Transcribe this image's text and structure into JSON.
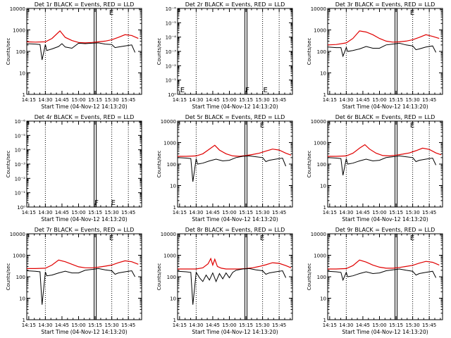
{
  "window": {
    "common_xlabel": "Start Time (04-Nov-12 14:13:20)",
    "common_ylabel": "Counts/sec"
  },
  "colors": {
    "events": "#000000",
    "lld": "#e00000",
    "background": "#ffffff"
  },
  "chart_data": [
    {
      "type": "line",
      "title": "Det 1r BLACK = Events, RED = LLD",
      "xlabel": "Start Time (04-Nov-12 14:13:20)",
      "ylabel": "Counts/sec",
      "yscale": "log",
      "ylim": [
        1,
        10000
      ],
      "yticks": [
        "1",
        "10",
        "100",
        "1000",
        "10000"
      ],
      "xticks": [
        "14:15",
        "14:30",
        "14:45",
        "15:00",
        "15:15",
        "15:30",
        "15:45"
      ],
      "xlim": [
        14.22,
        15.95
      ],
      "dotted_lines_x": [
        14.5,
        15.5,
        15.75
      ],
      "solid_lines_x": [
        15.25
      ],
      "markers": [
        {
          "label": "E",
          "x": 15.46
        }
      ],
      "series": [
        {
          "color": "red",
          "x": [
            14.22,
            14.35,
            14.5,
            14.6,
            14.72,
            14.8,
            14.9,
            15.0,
            15.1,
            15.2,
            15.3,
            15.4,
            15.5,
            15.6,
            15.7,
            15.8,
            15.9
          ],
          "y": [
            280,
            270,
            280,
            400,
            900,
            450,
            320,
            260,
            250,
            260,
            280,
            300,
            350,
            450,
            600,
            550,
            400
          ]
        },
        {
          "color": "black",
          "x": [
            14.22,
            14.35,
            14.42,
            14.45,
            14.5,
            14.52,
            14.6,
            14.7,
            14.75,
            14.8,
            14.9,
            15.0,
            15.1,
            15.2,
            15.3,
            15.4,
            15.5,
            15.55,
            15.6,
            15.7,
            15.8,
            15.85
          ],
          "y": [
            230,
            220,
            210,
            40,
            210,
            110,
            130,
            170,
            230,
            160,
            140,
            240,
            230,
            240,
            250,
            220,
            210,
            150,
            160,
            180,
            200,
            90
          ]
        }
      ]
    },
    {
      "type": "line",
      "title": "Det 2r BLACK = Events, RED = LLD",
      "xlabel": "Start Time (04-Nov-12 14:13:20)",
      "ylabel": "Counts/sec",
      "yscale": "log",
      "ylim": [
        1,
        1000000.0
      ],
      "yticks": [
        "10⁰",
        "10⁻¹",
        "10⁻²",
        "10⁻³",
        "10⁻⁴",
        "10⁻⁵",
        "10⁻⁶"
      ],
      "xticks": [
        "14:15",
        "14:30",
        "14:45",
        "15:00",
        "15:15",
        "15:30",
        "15:45"
      ],
      "xlim": [
        14.22,
        15.95
      ],
      "dotted_lines_x": [
        14.5,
        15.5,
        15.75
      ],
      "solid_lines_x": [
        15.25
      ],
      "markers": [
        {
          "label": "E",
          "x": 14.26
        },
        {
          "label": "F",
          "x": 15.24
        },
        {
          "label": "E",
          "x": 15.51
        }
      ],
      "series": []
    },
    {
      "type": "line",
      "title": "Det 3r BLACK = Events, RED = LLD",
      "xlabel": "Start Time (04-Nov-12 14:13:20)",
      "ylabel": "Counts/sec",
      "yscale": "log",
      "ylim": [
        1,
        10000
      ],
      "yticks": [
        "1",
        "10",
        "100",
        "1000",
        "10000"
      ],
      "xticks": [
        "14:15",
        "14:30",
        "14:45",
        "15:00",
        "15:15",
        "15:30",
        "15:45"
      ],
      "xlim": [
        14.22,
        15.95
      ],
      "dotted_lines_x": [
        14.5,
        15.5,
        15.75
      ],
      "solid_lines_x": [
        15.25
      ],
      "markers": [
        {
          "label": "E",
          "x": 15.46
        }
      ],
      "series": [
        {
          "color": "red",
          "x": [
            14.22,
            14.35,
            14.5,
            14.6,
            14.7,
            14.8,
            14.9,
            15.0,
            15.1,
            15.2,
            15.3,
            15.4,
            15.5,
            15.6,
            15.7,
            15.8,
            15.9
          ],
          "y": [
            200,
            210,
            250,
            400,
            900,
            800,
            600,
            400,
            300,
            270,
            280,
            300,
            350,
            450,
            600,
            500,
            400
          ]
        },
        {
          "color": "black",
          "x": [
            14.22,
            14.35,
            14.42,
            14.45,
            14.5,
            14.52,
            14.6,
            14.7,
            14.8,
            14.9,
            15.0,
            15.1,
            15.2,
            15.3,
            15.4,
            15.5,
            15.55,
            15.6,
            15.7,
            15.8,
            15.85
          ],
          "y": [
            160,
            150,
            150,
            60,
            150,
            100,
            110,
            130,
            170,
            140,
            140,
            200,
            220,
            240,
            200,
            180,
            120,
            130,
            160,
            180,
            90
          ]
        }
      ]
    },
    {
      "type": "line",
      "title": "Det 4r BLACK = Events, RED = LLD",
      "xlabel": "Start Time (04-Nov-12 14:13:20)",
      "ylabel": "Counts/sec",
      "yscale": "log",
      "ylim": [
        1,
        1000000.0
      ],
      "yticks": [
        "10⁰",
        "10⁻¹",
        "10⁻²",
        "10⁻³",
        "10⁻⁴",
        "10⁻⁵",
        "10⁻⁶"
      ],
      "xticks": [
        "14:15",
        "14:30",
        "14:45",
        "15:00",
        "15:15",
        "15:30",
        "15:45"
      ],
      "xlim": [
        14.22,
        15.95
      ],
      "dotted_lines_x": [
        14.5,
        15.5,
        15.75
      ],
      "solid_lines_x": [
        15.25
      ],
      "markers": [
        {
          "label": "F",
          "x": 15.24
        },
        {
          "label": "E",
          "x": 15.49
        }
      ],
      "series": []
    },
    {
      "type": "line",
      "title": "Det 5r BLACK = Events, RED = LLD",
      "xlabel": "Start Time (04-Nov-12 14:13:20)",
      "ylabel": "Counts/sec",
      "yscale": "log",
      "ylim": [
        1,
        10000
      ],
      "yticks": [
        "1",
        "10",
        "100",
        "1000",
        "10000"
      ],
      "xticks": [
        "14:15",
        "14:30",
        "14:45",
        "15:00",
        "15:15",
        "15:30",
        "15:45"
      ],
      "xlim": [
        14.22,
        15.95
      ],
      "dotted_lines_x": [
        14.5,
        15.5,
        15.75
      ],
      "solid_lines_x": [
        15.25
      ],
      "markers": [
        {
          "label": "E",
          "x": 15.46
        }
      ],
      "series": [
        {
          "color": "red",
          "x": [
            14.22,
            14.35,
            14.5,
            14.6,
            14.7,
            14.78,
            14.85,
            14.95,
            15.05,
            15.15,
            15.25,
            15.35,
            15.45,
            15.55,
            15.65,
            15.75,
            15.85,
            15.93
          ],
          "y": [
            230,
            230,
            240,
            300,
            500,
            750,
            450,
            300,
            240,
            230,
            250,
            280,
            320,
            400,
            500,
            450,
            320,
            260
          ]
        },
        {
          "color": "black",
          "x": [
            14.22,
            14.35,
            14.42,
            14.45,
            14.5,
            14.52,
            14.6,
            14.7,
            14.8,
            14.9,
            15.0,
            15.1,
            15.2,
            15.3,
            15.4,
            15.5,
            15.55,
            15.6,
            15.7,
            15.8,
            15.85
          ],
          "y": [
            200,
            190,
            180,
            15,
            180,
            100,
            110,
            140,
            170,
            140,
            150,
            200,
            230,
            240,
            220,
            200,
            130,
            150,
            170,
            190,
            80
          ]
        }
      ]
    },
    {
      "type": "line",
      "title": "Det 6r BLACK = Events, RED = LLD",
      "xlabel": "Start Time (04-Nov-12 14:13:20)",
      "ylabel": "Counts/sec",
      "yscale": "log",
      "ylim": [
        1,
        10000
      ],
      "yticks": [
        "1",
        "10",
        "100",
        "1000",
        "10000"
      ],
      "xticks": [
        "14:15",
        "14:30",
        "14:45",
        "15:00",
        "15:15",
        "15:30",
        "15:45"
      ],
      "xlim": [
        14.22,
        15.95
      ],
      "dotted_lines_x": [
        14.5,
        15.5,
        15.75
      ],
      "solid_lines_x": [
        15.25
      ],
      "markers": [
        {
          "label": "E",
          "x": 15.46
        }
      ],
      "series": [
        {
          "color": "red",
          "x": [
            14.22,
            14.35,
            14.5,
            14.6,
            14.7,
            14.78,
            14.85,
            14.95,
            15.05,
            15.15,
            15.25,
            15.35,
            15.45,
            15.55,
            15.65,
            15.75,
            15.85,
            15.93
          ],
          "y": [
            230,
            230,
            240,
            320,
            550,
            800,
            500,
            320,
            250,
            240,
            260,
            290,
            330,
            420,
            550,
            480,
            330,
            270
          ]
        },
        {
          "color": "black",
          "x": [
            14.22,
            14.35,
            14.42,
            14.45,
            14.5,
            14.52,
            14.6,
            14.7,
            14.8,
            14.9,
            15.0,
            15.1,
            15.2,
            15.3,
            15.4,
            15.5,
            15.55,
            15.6,
            15.7,
            15.8,
            15.85
          ],
          "y": [
            200,
            190,
            180,
            30,
            180,
            100,
            110,
            140,
            170,
            140,
            150,
            200,
            220,
            240,
            220,
            200,
            130,
            150,
            170,
            190,
            90
          ]
        }
      ]
    },
    {
      "type": "line",
      "title": "Det 7r BLACK = Events, RED = LLD",
      "xlabel": "Start Time (04-Nov-12 14:13:20)",
      "ylabel": "Counts/sec",
      "yscale": "log",
      "ylim": [
        1,
        10000
      ],
      "yticks": [
        "1",
        "10",
        "100",
        "1000",
        "10000"
      ],
      "xticks": [
        "14:15",
        "14:30",
        "14:45",
        "15:00",
        "15:15",
        "15:30",
        "15:45"
      ],
      "xlim": [
        14.22,
        15.95
      ],
      "dotted_lines_x": [
        14.5,
        15.5,
        15.75
      ],
      "solid_lines_x": [
        15.25
      ],
      "markers": [
        {
          "label": "E",
          "x": 15.46
        }
      ],
      "series": [
        {
          "color": "red",
          "x": [
            14.22,
            14.35,
            14.5,
            14.6,
            14.7,
            14.8,
            14.9,
            15.0,
            15.1,
            15.2,
            15.3,
            15.4,
            15.5,
            15.6,
            15.7,
            15.8,
            15.9
          ],
          "y": [
            240,
            240,
            250,
            350,
            600,
            500,
            380,
            290,
            260,
            260,
            280,
            310,
            350,
            450,
            550,
            500,
            380
          ]
        },
        {
          "color": "black",
          "x": [
            14.22,
            14.35,
            14.42,
            14.45,
            14.5,
            14.52,
            14.6,
            14.7,
            14.8,
            14.9,
            15.0,
            15.1,
            15.2,
            15.3,
            15.4,
            15.5,
            15.55,
            15.6,
            15.7,
            15.8,
            15.85
          ],
          "y": [
            190,
            180,
            170,
            5,
            170,
            110,
            120,
            150,
            180,
            150,
            150,
            200,
            220,
            240,
            210,
            190,
            130,
            150,
            170,
            190,
            100
          ]
        }
      ]
    },
    {
      "type": "line",
      "title": "Det 8r BLACK = Events, RED = LLD",
      "xlabel": "Start Time (04-Nov-12 14:13:20)",
      "ylabel": "Counts/sec",
      "yscale": "log",
      "ylim": [
        1,
        10000
      ],
      "yticks": [
        "1",
        "10",
        "100",
        "1000",
        "10000"
      ],
      "xticks": [
        "14:15",
        "14:30",
        "14:45",
        "15:00",
        "15:15",
        "15:30",
        "15:45"
      ],
      "xlim": [
        14.22,
        15.95
      ],
      "dotted_lines_x": [
        14.5,
        15.5,
        15.75
      ],
      "solid_lines_x": [
        15.25
      ],
      "markers": [
        {
          "label": "E",
          "x": 15.46
        }
      ],
      "series": [
        {
          "color": "red",
          "x": [
            14.22,
            14.35,
            14.5,
            14.6,
            14.68,
            14.72,
            14.75,
            14.78,
            14.82,
            14.88,
            14.95,
            15.05,
            15.15,
            15.25,
            15.35,
            15.45,
            15.55,
            15.65,
            15.75,
            15.85,
            15.93
          ],
          "y": [
            230,
            230,
            230,
            260,
            400,
            700,
            350,
            650,
            300,
            250,
            230,
            230,
            230,
            240,
            260,
            300,
            360,
            450,
            420,
            330,
            260
          ]
        },
        {
          "color": "black",
          "x": [
            14.22,
            14.35,
            14.42,
            14.45,
            14.5,
            14.55,
            14.6,
            14.65,
            14.7,
            14.75,
            14.8,
            14.85,
            14.9,
            14.95,
            15.0,
            15.05,
            15.1,
            15.2,
            15.3,
            15.4,
            15.5,
            15.55,
            15.6,
            15.7,
            15.8,
            15.85
          ],
          "y": [
            180,
            170,
            160,
            5,
            160,
            90,
            60,
            120,
            70,
            150,
            60,
            140,
            80,
            150,
            90,
            160,
            200,
            230,
            240,
            210,
            190,
            130,
            150,
            170,
            190,
            90
          ]
        }
      ]
    },
    {
      "type": "line",
      "title": "Det 9r BLACK = Events, RED = LLD",
      "xlabel": "Start Time (04-Nov-12 14:13:20)",
      "ylabel": "Counts/sec",
      "yscale": "log",
      "ylim": [
        1,
        10000
      ],
      "yticks": [
        "1",
        "10",
        "100",
        "1000",
        "10000"
      ],
      "xticks": [
        "14:15",
        "14:30",
        "14:45",
        "15:00",
        "15:15",
        "15:30",
        "15:45"
      ],
      "xlim": [
        14.22,
        15.95
      ],
      "dotted_lines_x": [
        14.5,
        15.5,
        15.75
      ],
      "solid_lines_x": [
        15.25
      ],
      "markers": [
        {
          "label": "E",
          "x": 15.46
        }
      ],
      "series": [
        {
          "color": "red",
          "x": [
            14.22,
            14.35,
            14.5,
            14.6,
            14.7,
            14.8,
            14.9,
            15.0,
            15.1,
            15.2,
            15.3,
            15.4,
            15.5,
            15.6,
            15.7,
            15.8,
            15.9
          ],
          "y": [
            230,
            230,
            240,
            330,
            600,
            480,
            350,
            280,
            250,
            250,
            270,
            300,
            340,
            430,
            520,
            470,
            350
          ]
        },
        {
          "color": "black",
          "x": [
            14.22,
            14.35,
            14.42,
            14.45,
            14.5,
            14.52,
            14.6,
            14.7,
            14.8,
            14.9,
            15.0,
            15.1,
            15.2,
            15.3,
            15.4,
            15.5,
            15.55,
            15.6,
            15.7,
            15.8,
            15.85
          ],
          "y": [
            180,
            170,
            160,
            70,
            160,
            100,
            110,
            140,
            170,
            140,
            150,
            190,
            210,
            230,
            200,
            180,
            120,
            140,
            160,
            180,
            90
          ]
        }
      ]
    }
  ]
}
